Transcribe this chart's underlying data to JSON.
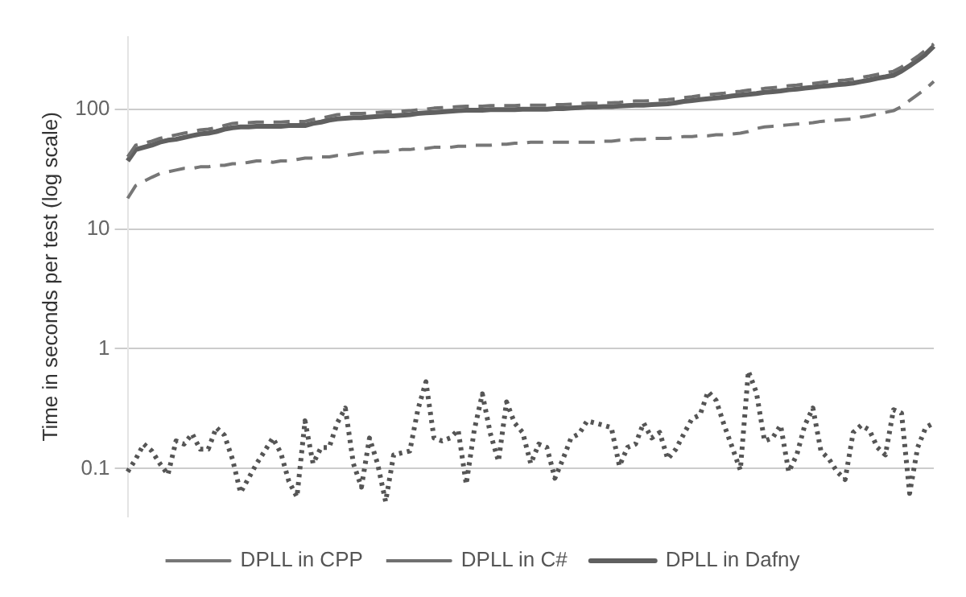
{
  "chart_data": {
    "type": "line",
    "ylabel": "Time in seconds per test (log scale)",
    "log": true,
    "ylim": [
      0.04,
      400
    ],
    "yticks": [
      0.1,
      1,
      10,
      100
    ],
    "grid": "y",
    "legend": "bottom",
    "marker": "none",
    "categories": [
      null,
      null,
      null,
      null,
      null,
      null,
      null,
      null,
      null,
      null,
      null,
      null,
      null,
      null,
      null,
      null,
      null,
      null,
      null,
      null,
      null,
      null,
      null,
      null,
      null,
      null,
      null,
      null,
      null,
      null,
      null,
      null,
      null,
      null,
      null,
      null,
      null,
      null,
      null,
      null,
      null,
      null,
      null,
      null,
      null,
      null,
      null,
      null,
      null,
      null,
      null,
      null,
      null,
      null,
      null,
      null,
      null,
      null,
      null,
      null,
      null,
      null,
      null,
      null,
      null,
      null,
      null,
      null,
      null,
      null,
      null,
      null,
      null,
      null,
      null,
      null,
      null,
      null,
      null,
      null,
      null,
      null,
      null,
      null,
      null,
      null,
      null,
      null,
      null,
      null,
      null,
      null,
      null,
      null,
      null,
      null,
      null,
      null,
      null,
      null,
      null
    ],
    "series": [
      {
        "name": "DPLL in CPP",
        "color": "#777777",
        "line_style": "dashed",
        "values": [
          18,
          23,
          25,
          27,
          29,
          30,
          31,
          32,
          32,
          33,
          33,
          34,
          34,
          35,
          35,
          36,
          37,
          37,
          36,
          37,
          37,
          38,
          39,
          39,
          40,
          40,
          41,
          41,
          42,
          43,
          43,
          44,
          44,
          45,
          46,
          46,
          47,
          47,
          48,
          48,
          48,
          49,
          49,
          50,
          50,
          50,
          51,
          51,
          52,
          52,
          53,
          53,
          53,
          53,
          53,
          53,
          53,
          53,
          53,
          54,
          54,
          55,
          55,
          56,
          56,
          57,
          57,
          57,
          58,
          59,
          59,
          60,
          60,
          61,
          61,
          62,
          63,
          65,
          69,
          71,
          72,
          73,
          74,
          75,
          76,
          77,
          79,
          80,
          81,
          82,
          83,
          86,
          88,
          91,
          94,
          97,
          105,
          118,
          132,
          148,
          170
        ]
      },
      {
        "name": "DPLL in C#",
        "color": "#707070",
        "line_style": "dashed",
        "values": [
          40,
          50,
          52,
          54,
          57,
          59,
          61,
          63,
          65,
          67,
          68,
          70,
          73,
          76,
          77,
          77,
          78,
          78,
          78,
          78,
          79,
          79,
          79,
          82,
          84,
          87,
          90,
          91,
          92,
          92,
          93,
          94,
          95,
          95,
          96,
          97,
          99,
          100,
          102,
          103,
          104,
          105,
          106,
          106,
          106,
          107,
          107,
          107,
          107,
          108,
          108,
          108,
          108,
          109,
          109,
          110,
          111,
          112,
          112,
          113,
          113,
          114,
          116,
          117,
          117,
          118,
          119,
          120,
          122,
          125,
          127,
          130,
          132,
          134,
          136,
          139,
          141,
          144,
          146,
          149,
          151,
          153,
          157,
          159,
          162,
          164,
          167,
          170,
          173,
          175,
          178,
          184,
          189,
          195,
          201,
          207,
          225,
          248,
          276,
          311,
          350
        ]
      },
      {
        "name": "DPLL in Dafny",
        "color": "#606060",
        "line_style": "solid",
        "values": [
          37,
          46,
          48,
          50,
          53,
          55,
          56,
          58,
          60,
          62,
          63,
          65,
          68,
          70,
          71,
          71,
          72,
          72,
          72,
          72,
          73,
          73,
          73,
          76,
          78,
          81,
          83,
          84,
          85,
          85,
          86,
          87,
          88,
          88,
          89,
          90,
          92,
          93,
          94,
          95,
          96,
          97,
          98,
          98,
          98,
          99,
          99,
          99,
          99,
          100,
          100,
          100,
          100,
          101,
          101,
          102,
          103,
          104,
          104,
          105,
          105,
          106,
          107,
          108,
          108,
          109,
          110,
          111,
          113,
          116,
          118,
          120,
          122,
          124,
          126,
          129,
          131,
          133,
          135,
          138,
          140,
          142,
          145,
          147,
          150,
          152,
          155,
          157,
          160,
          162,
          165,
          170,
          175,
          181,
          186,
          192,
          208,
          230,
          256,
          288,
          336
        ]
      },
      {
        "color": "#555555",
        "line_style": "dotted",
        "values": [
          0.094,
          0.12,
          0.16,
          0.14,
          0.11,
          0.089,
          0.17,
          0.16,
          0.195,
          0.145,
          0.145,
          0.22,
          0.19,
          0.12,
          0.063,
          0.083,
          0.11,
          0.14,
          0.18,
          0.135,
          0.078,
          0.058,
          0.25,
          0.11,
          0.15,
          0.15,
          0.24,
          0.32,
          0.11,
          0.07,
          0.18,
          0.11,
          0.053,
          0.13,
          0.135,
          0.14,
          0.31,
          0.53,
          0.18,
          0.17,
          0.18,
          0.21,
          0.074,
          0.21,
          0.42,
          0.195,
          0.115,
          0.36,
          0.24,
          0.2,
          0.11,
          0.16,
          0.15,
          0.083,
          0.12,
          0.18,
          0.195,
          0.25,
          0.24,
          0.23,
          0.22,
          0.105,
          0.15,
          0.16,
          0.24,
          0.18,
          0.2,
          0.12,
          0.145,
          0.195,
          0.26,
          0.28,
          0.44,
          0.37,
          0.23,
          0.15,
          0.097,
          0.65,
          0.43,
          0.17,
          0.18,
          0.23,
          0.094,
          0.13,
          0.23,
          0.32,
          0.14,
          0.12,
          0.094,
          0.081,
          0.2,
          0.23,
          0.21,
          0.15,
          0.13,
          0.31,
          0.29,
          0.062,
          0.15,
          0.22,
          0.24
        ]
      }
    ]
  }
}
